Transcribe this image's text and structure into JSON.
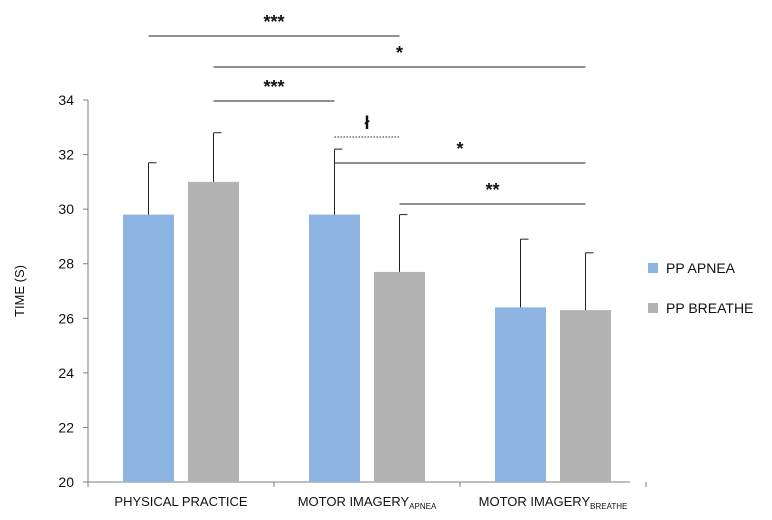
{
  "chart_data": {
    "type": "bar",
    "ylabel": "TIME (S)",
    "ylim": [
      20,
      34
    ],
    "yticks": [
      "20",
      "22",
      "24",
      "26",
      "28",
      "30",
      "32",
      "34"
    ],
    "grid": false,
    "legend_position": "right",
    "categories": [
      {
        "main": "PHYSICAL PRACTICE",
        "sub": ""
      },
      {
        "main": "MOTOR IMAGERY",
        "sub": "APNEA"
      },
      {
        "main": "MOTOR IMAGERY",
        "sub": "BREATHE"
      }
    ],
    "series": [
      {
        "name": "PP APNEA",
        "color": "#8db3e2",
        "values": [
          29.8,
          29.8,
          26.4
        ],
        "error": [
          1.9,
          2.4,
          2.5
        ]
      },
      {
        "name": "PP BREATHE",
        "color": "#b3b3b3",
        "values": [
          31.0,
          27.7,
          26.3
        ],
        "error": [
          1.8,
          2.1,
          2.1
        ]
      }
    ],
    "significance": [
      {
        "label": "***",
        "from": [
          0,
          0
        ],
        "to": [
          1,
          1
        ],
        "style": "solid"
      },
      {
        "label": "*",
        "from": [
          0,
          1
        ],
        "to": [
          2,
          1
        ],
        "style": "solid"
      },
      {
        "label": "***",
        "from": [
          0,
          1
        ],
        "to": [
          1,
          0
        ],
        "style": "solid"
      },
      {
        "label": "ł",
        "from": [
          1,
          0
        ],
        "to": [
          1,
          1
        ],
        "style": "dotted"
      },
      {
        "label": "*",
        "from": [
          1,
          0
        ],
        "to": [
          2,
          1
        ],
        "style": "solid"
      },
      {
        "label": "**",
        "from": [
          1,
          1
        ],
        "to": [
          2,
          1
        ],
        "style": "solid"
      }
    ]
  }
}
